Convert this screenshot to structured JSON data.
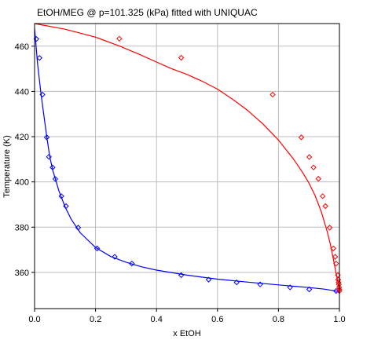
{
  "chart_data": {
    "type": "scatter",
    "title": "EtOH/MEG @ p=101.325 (kPa) fitted with UNIQUAC",
    "xlabel": "x EtOH",
    "ylabel": "Temperature (K)",
    "xlim": [
      0,
      1
    ],
    "ylim": [
      344,
      470
    ],
    "x_ticks": [
      "0.0",
      "0.2",
      "0.4",
      "0.6",
      "0.8",
      "1.0"
    ],
    "y_ticks": [
      "360",
      "380",
      "400",
      "420",
      "440",
      "460"
    ],
    "grid": true,
    "legend": "none",
    "series": [
      {
        "kind": "markers",
        "marker": "diamond",
        "color": "#0000ff",
        "points": [
          [
            0.006,
            463.2
          ],
          [
            0.016,
            454.8
          ],
          [
            0.026,
            438.6
          ],
          [
            0.04,
            419.7
          ],
          [
            0.047,
            411.1
          ],
          [
            0.059,
            406.4
          ],
          [
            0.068,
            401.3
          ],
          [
            0.088,
            393.7
          ],
          [
            0.103,
            389.3
          ],
          [
            0.143,
            379.8
          ],
          [
            0.205,
            370.6
          ],
          [
            0.263,
            366.9
          ],
          [
            0.319,
            363.9
          ],
          [
            0.481,
            358.8
          ],
          [
            0.571,
            356.8
          ],
          [
            0.663,
            355.6
          ],
          [
            0.74,
            354.7
          ],
          [
            0.838,
            353.4
          ],
          [
            0.901,
            352.5
          ],
          [
            0.989,
            351.8
          ]
        ]
      },
      {
        "kind": "markers",
        "marker": "diamond",
        "color": "#ff0000",
        "points": [
          [
            0.278,
            463.3
          ],
          [
            0.481,
            454.9
          ],
          [
            0.781,
            438.6
          ],
          [
            0.875,
            419.7
          ],
          [
            0.901,
            411.0
          ],
          [
            0.915,
            406.4
          ],
          [
            0.931,
            401.4
          ],
          [
            0.945,
            393.7
          ],
          [
            0.954,
            389.3
          ],
          [
            0.968,
            379.8
          ],
          [
            0.98,
            370.6
          ],
          [
            0.986,
            366.9
          ],
          [
            0.989,
            363.9
          ],
          [
            0.995,
            358.8
          ],
          [
            0.996,
            356.8
          ],
          [
            0.997,
            355.6
          ],
          [
            0.998,
            354.7
          ],
          [
            0.999,
            353.4
          ],
          [
            0.9995,
            352.5
          ],
          [
            0.9998,
            351.8
          ]
        ]
      },
      {
        "kind": "line",
        "color": "#0000ff",
        "points": [
          [
            0.0,
            468.0
          ],
          [
            0.005,
            460.0
          ],
          [
            0.01,
            452.0
          ],
          [
            0.02,
            440.0
          ],
          [
            0.03,
            430.0
          ],
          [
            0.04,
            420.0
          ],
          [
            0.05,
            411.0
          ],
          [
            0.06,
            405.0
          ],
          [
            0.08,
            396.0
          ],
          [
            0.1,
            389.0
          ],
          [
            0.12,
            383.5
          ],
          [
            0.15,
            377.5
          ],
          [
            0.2,
            371.0
          ],
          [
            0.25,
            367.0
          ],
          [
            0.3,
            364.5
          ],
          [
            0.35,
            362.5
          ],
          [
            0.4,
            361.0
          ],
          [
            0.5,
            358.8
          ],
          [
            0.6,
            357.0
          ],
          [
            0.7,
            355.7
          ],
          [
            0.8,
            354.5
          ],
          [
            0.9,
            353.3
          ],
          [
            0.95,
            352.6
          ],
          [
            1.0,
            351.5
          ]
        ]
      },
      {
        "kind": "line",
        "color": "#ff0000",
        "points": [
          [
            0.0,
            470.0
          ],
          [
            0.1,
            467.5
          ],
          [
            0.2,
            464.0
          ],
          [
            0.28,
            460.0
          ],
          [
            0.35,
            456.0
          ],
          [
            0.4,
            453.0
          ],
          [
            0.45,
            450.0
          ],
          [
            0.5,
            447.5
          ],
          [
            0.55,
            444.5
          ],
          [
            0.6,
            441.0
          ],
          [
            0.65,
            436.5
          ],
          [
            0.7,
            431.5
          ],
          [
            0.75,
            425.5
          ],
          [
            0.8,
            418.5
          ],
          [
            0.85,
            410.0
          ],
          [
            0.88,
            404.0
          ],
          [
            0.9,
            399.5
          ],
          [
            0.92,
            394.0
          ],
          [
            0.94,
            387.0
          ],
          [
            0.96,
            378.0
          ],
          [
            0.97,
            372.5
          ],
          [
            0.98,
            366.0
          ],
          [
            0.99,
            359.0
          ],
          [
            0.995,
            355.5
          ],
          [
            1.0,
            351.5
          ]
        ]
      }
    ]
  }
}
